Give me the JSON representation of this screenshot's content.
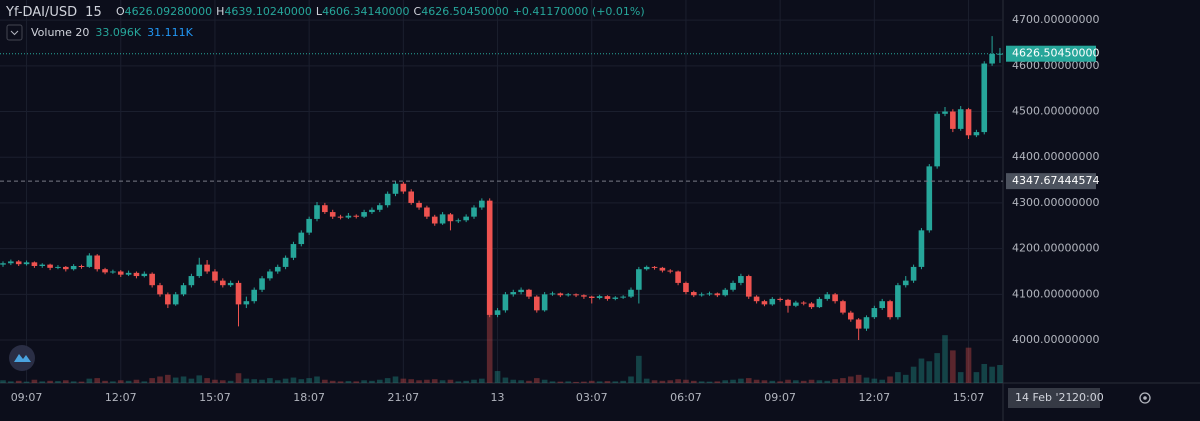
{
  "chart_data": {
    "type": "candlestick",
    "title": "Yf-DAI/USD",
    "interval": "15",
    "header": [
      {
        "key": "O",
        "text": "4626.09280000"
      },
      {
        "key": "H",
        "text": "4639.10240000"
      },
      {
        "key": "L",
        "text": "4606.34140000"
      },
      {
        "key": "C",
        "text": "4626.50450000"
      }
    ],
    "change": "+0.41170000 (+0.01%)",
    "up_color": "#26a69a",
    "down_color": "#ef5350",
    "ylim": [
      3906,
      4744
    ],
    "yticks": [
      {
        "value": 4000,
        "label": "4000.00000000"
      },
      {
        "value": 4100,
        "label": "4100.00000000"
      },
      {
        "value": 4200,
        "label": "4200.00000000"
      },
      {
        "value": 4300,
        "label": "4300.00000000"
      },
      {
        "value": 4400,
        "label": "4400.00000000"
      },
      {
        "value": 4500,
        "label": "4500.00000000"
      },
      {
        "value": 4600,
        "label": "4600.00000000"
      },
      {
        "value": 4700,
        "label": "4700.00000000"
      }
    ],
    "grid": true,
    "last_price": {
      "value": 4626.5045,
      "label": "4626.50450000"
    },
    "marker_price": {
      "value": 4347.67444574,
      "label": "4347.67444574"
    },
    "crosshair_date": "14 Feb '21",
    "crosshair_time": "20:00",
    "categories": [
      null,
      null,
      null,
      "09:07",
      null,
      null,
      null,
      null,
      null,
      null,
      null,
      null,
      null,
      null,
      null,
      "12:07",
      null,
      null,
      null,
      null,
      null,
      null,
      null,
      null,
      null,
      null,
      null,
      "15:07",
      null,
      null,
      null,
      null,
      null,
      null,
      null,
      null,
      null,
      null,
      null,
      "18:07",
      null,
      null,
      null,
      null,
      null,
      null,
      null,
      null,
      null,
      null,
      null,
      "21:07",
      null,
      null,
      null,
      null,
      null,
      null,
      null,
      null,
      null,
      null,
      null,
      "13",
      null,
      null,
      null,
      null,
      null,
      null,
      null,
      null,
      null,
      null,
      null,
      "03:07",
      null,
      null,
      null,
      null,
      null,
      null,
      null,
      null,
      null,
      null,
      null,
      "06:07",
      null,
      null,
      null,
      null,
      null,
      null,
      null,
      null,
      null,
      null,
      null,
      "09:07",
      null,
      null,
      null,
      null,
      null,
      null,
      null,
      null,
      null,
      null,
      null,
      "12:07",
      null,
      null,
      null,
      null,
      null,
      null,
      null,
      null,
      null,
      null,
      null,
      "15:07",
      null,
      null,
      null,
      null
    ],
    "ohlc": [
      [
        4165,
        4172,
        4160,
        4168
      ],
      [
        4168,
        4176,
        4164,
        4172
      ],
      [
        4172,
        4175,
        4162,
        4166
      ],
      [
        4166,
        4174,
        4163,
        4170
      ],
      [
        4170,
        4172,
        4158,
        4162
      ],
      [
        4162,
        4168,
        4158,
        4165
      ],
      [
        4165,
        4167,
        4153,
        4158
      ],
      [
        4158,
        4164,
        4155,
        4160
      ],
      [
        4160,
        4162,
        4150,
        4155
      ],
      [
        4155,
        4166,
        4152,
        4162
      ],
      [
        4162,
        4165,
        4156,
        4160
      ],
      [
        4160,
        4190,
        4158,
        4185
      ],
      [
        4185,
        4188,
        4150,
        4155
      ],
      [
        4155,
        4158,
        4144,
        4148
      ],
      [
        4148,
        4154,
        4145,
        4150
      ],
      [
        4150,
        4153,
        4138,
        4143
      ],
      [
        4143,
        4152,
        4140,
        4147
      ],
      [
        4147,
        4150,
        4135,
        4140
      ],
      [
        4140,
        4150,
        4137,
        4145
      ],
      [
        4145,
        4148,
        4115,
        4120
      ],
      [
        4120,
        4125,
        4095,
        4100
      ],
      [
        4100,
        4104,
        4070,
        4078
      ],
      [
        4078,
        4105,
        4075,
        4100
      ],
      [
        4100,
        4125,
        4096,
        4120
      ],
      [
        4120,
        4145,
        4115,
        4140
      ],
      [
        4140,
        4180,
        4136,
        4165
      ],
      [
        4165,
        4175,
        4145,
        4150
      ],
      [
        4150,
        4155,
        4125,
        4130
      ],
      [
        4130,
        4135,
        4115,
        4120
      ],
      [
        4120,
        4130,
        4116,
        4125
      ],
      [
        4125,
        4130,
        4030,
        4078
      ],
      [
        4078,
        4095,
        4070,
        4085
      ],
      [
        4085,
        4115,
        4080,
        4110
      ],
      [
        4110,
        4140,
        4105,
        4135
      ],
      [
        4135,
        4155,
        4130,
        4150
      ],
      [
        4150,
        4165,
        4145,
        4160
      ],
      [
        4160,
        4185,
        4155,
        4180
      ],
      [
        4180,
        4215,
        4175,
        4210
      ],
      [
        4210,
        4240,
        4205,
        4235
      ],
      [
        4235,
        4270,
        4230,
        4265
      ],
      [
        4265,
        4302,
        4260,
        4295
      ],
      [
        4295,
        4300,
        4276,
        4280
      ],
      [
        4280,
        4285,
        4265,
        4270
      ],
      [
        4270,
        4274,
        4264,
        4268
      ],
      [
        4268,
        4278,
        4265,
        4272
      ],
      [
        4272,
        4275,
        4266,
        4270
      ],
      [
        4270,
        4285,
        4267,
        4280
      ],
      [
        4280,
        4290,
        4276,
        4285
      ],
      [
        4285,
        4300,
        4280,
        4295
      ],
      [
        4295,
        4325,
        4290,
        4320
      ],
      [
        4320,
        4348,
        4315,
        4342
      ],
      [
        4342,
        4346,
        4320,
        4325
      ],
      [
        4325,
        4330,
        4296,
        4300
      ],
      [
        4300,
        4305,
        4285,
        4290
      ],
      [
        4290,
        4294,
        4265,
        4270
      ],
      [
        4270,
        4274,
        4250,
        4255
      ],
      [
        4255,
        4280,
        4252,
        4275
      ],
      [
        4275,
        4278,
        4240,
        4260
      ],
      [
        4260,
        4266,
        4256,
        4262
      ],
      [
        4262,
        4275,
        4258,
        4270
      ],
      [
        4270,
        4295,
        4265,
        4290
      ],
      [
        4290,
        4310,
        4285,
        4305
      ],
      [
        4305,
        4310,
        4050,
        4055
      ],
      [
        4055,
        4070,
        4050,
        4065
      ],
      [
        4065,
        4105,
        4060,
        4100
      ],
      [
        4100,
        4110,
        4095,
        4105
      ],
      [
        4105,
        4115,
        4100,
        4110
      ],
      [
        4110,
        4112,
        4090,
        4095
      ],
      [
        4095,
        4098,
        4060,
        4065
      ],
      [
        4065,
        4105,
        4062,
        4100
      ],
      [
        4100,
        4106,
        4097,
        4102
      ],
      [
        4102,
        4104,
        4094,
        4098
      ],
      [
        4098,
        4103,
        4095,
        4100
      ],
      [
        4100,
        4102,
        4094,
        4098
      ],
      [
        4098,
        4100,
        4090,
        4095
      ],
      [
        4095,
        4097,
        4080,
        4092
      ],
      [
        4092,
        4099,
        4089,
        4096
      ],
      [
        4096,
        4098,
        4086,
        4090
      ],
      [
        4090,
        4096,
        4087,
        4093
      ],
      [
        4093,
        4098,
        4090,
        4095
      ],
      [
        4095,
        4115,
        4092,
        4110
      ],
      [
        4110,
        4160,
        4080,
        4155
      ],
      [
        4155,
        4163,
        4152,
        4160
      ],
      [
        4160,
        4162,
        4154,
        4158
      ],
      [
        4158,
        4160,
        4148,
        4152
      ],
      [
        4152,
        4155,
        4146,
        4150
      ],
      [
        4150,
        4152,
        4120,
        4125
      ],
      [
        4125,
        4128,
        4100,
        4105
      ],
      [
        4105,
        4108,
        4094,
        4098
      ],
      [
        4098,
        4104,
        4095,
        4100
      ],
      [
        4100,
        4106,
        4097,
        4102
      ],
      [
        4102,
        4104,
        4094,
        4098
      ],
      [
        4098,
        4114,
        4095,
        4110
      ],
      [
        4110,
        4130,
        4106,
        4125
      ],
      [
        4125,
        4145,
        4120,
        4140
      ],
      [
        4140,
        4143,
        4090,
        4095
      ],
      [
        4095,
        4098,
        4080,
        4085
      ],
      [
        4085,
        4088,
        4074,
        4078
      ],
      [
        4078,
        4094,
        4075,
        4090
      ],
      [
        4090,
        4093,
        4084,
        4088
      ],
      [
        4088,
        4090,
        4060,
        4075
      ],
      [
        4075,
        4086,
        4072,
        4082
      ],
      [
        4082,
        4085,
        4076,
        4080
      ],
      [
        4080,
        4083,
        4068,
        4072
      ],
      [
        4072,
        4094,
        4070,
        4090
      ],
      [
        4090,
        4105,
        4086,
        4100
      ],
      [
        4100,
        4103,
        4080,
        4085
      ],
      [
        4085,
        4088,
        4056,
        4060
      ],
      [
        4060,
        4064,
        4040,
        4045
      ],
      [
        4045,
        4048,
        4000,
        4025
      ],
      [
        4025,
        4054,
        4020,
        4050
      ],
      [
        4050,
        4075,
        4046,
        4070
      ],
      [
        4070,
        4090,
        4066,
        4085
      ],
      [
        4085,
        4088,
        4045,
        4050
      ],
      [
        4050,
        4125,
        4045,
        4120
      ],
      [
        4120,
        4140,
        4115,
        4130
      ],
      [
        4130,
        4165,
        4125,
        4160
      ],
      [
        4160,
        4245,
        4155,
        4240
      ],
      [
        4240,
        4385,
        4235,
        4380
      ],
      [
        4380,
        4500,
        4375,
        4495
      ],
      [
        4495,
        4510,
        4490,
        4500
      ],
      [
        4500,
        4505,
        4455,
        4462
      ],
      [
        4462,
        4512,
        4458,
        4505
      ],
      [
        4505,
        4508,
        4440,
        4448
      ],
      [
        4448,
        4460,
        4444,
        4455
      ],
      [
        4455,
        4610,
        4450,
        4605
      ],
      [
        4605,
        4665,
        4600,
        4626
      ],
      [
        4626.0928,
        4639.1024,
        4606.3414,
        4626.5045
      ]
    ],
    "volume": {
      "name": "Volume 20",
      "value_text": "33.096K",
      "ma_text": "31.111K",
      "values": [
        5000,
        3000,
        4000,
        2500,
        6000,
        3000,
        4000,
        3500,
        5000,
        3000,
        2500,
        8000,
        9000,
        4000,
        3000,
        5000,
        4000,
        6000,
        3000,
        9000,
        12000,
        15000,
        10000,
        12000,
        8000,
        14000,
        9000,
        6000,
        5000,
        4000,
        18000,
        8000,
        7000,
        6000,
        9000,
        5000,
        8000,
        10000,
        7000,
        9000,
        12000,
        6000,
        4000,
        3000,
        3500,
        3000,
        5000,
        4000,
        6000,
        9000,
        12000,
        8000,
        7000,
        5000,
        6000,
        7000,
        5000,
        6000,
        3000,
        4000,
        6000,
        8000,
        155000,
        22000,
        10000,
        6000,
        5000,
        4000,
        9000,
        6000,
        3000,
        2500,
        3000,
        2000,
        2500,
        4000,
        3000,
        3500,
        3000,
        4000,
        12000,
        50000,
        8000,
        5000,
        4000,
        5000,
        7000,
        6000,
        4000,
        3000,
        2500,
        3000,
        5000,
        6000,
        8000,
        9000,
        6000,
        5000,
        4000,
        3000,
        6000,
        5000,
        4000,
        6000,
        5000,
        4000,
        7000,
        9000,
        12000,
        15000,
        10000,
        8000,
        6000,
        12000,
        20000,
        15000,
        30000,
        45000,
        40000,
        55000,
        88000,
        60000,
        20000,
        65000,
        20000,
        35000,
        30000,
        33096
      ]
    },
    "vlim": [
      0,
      184000
    ]
  }
}
